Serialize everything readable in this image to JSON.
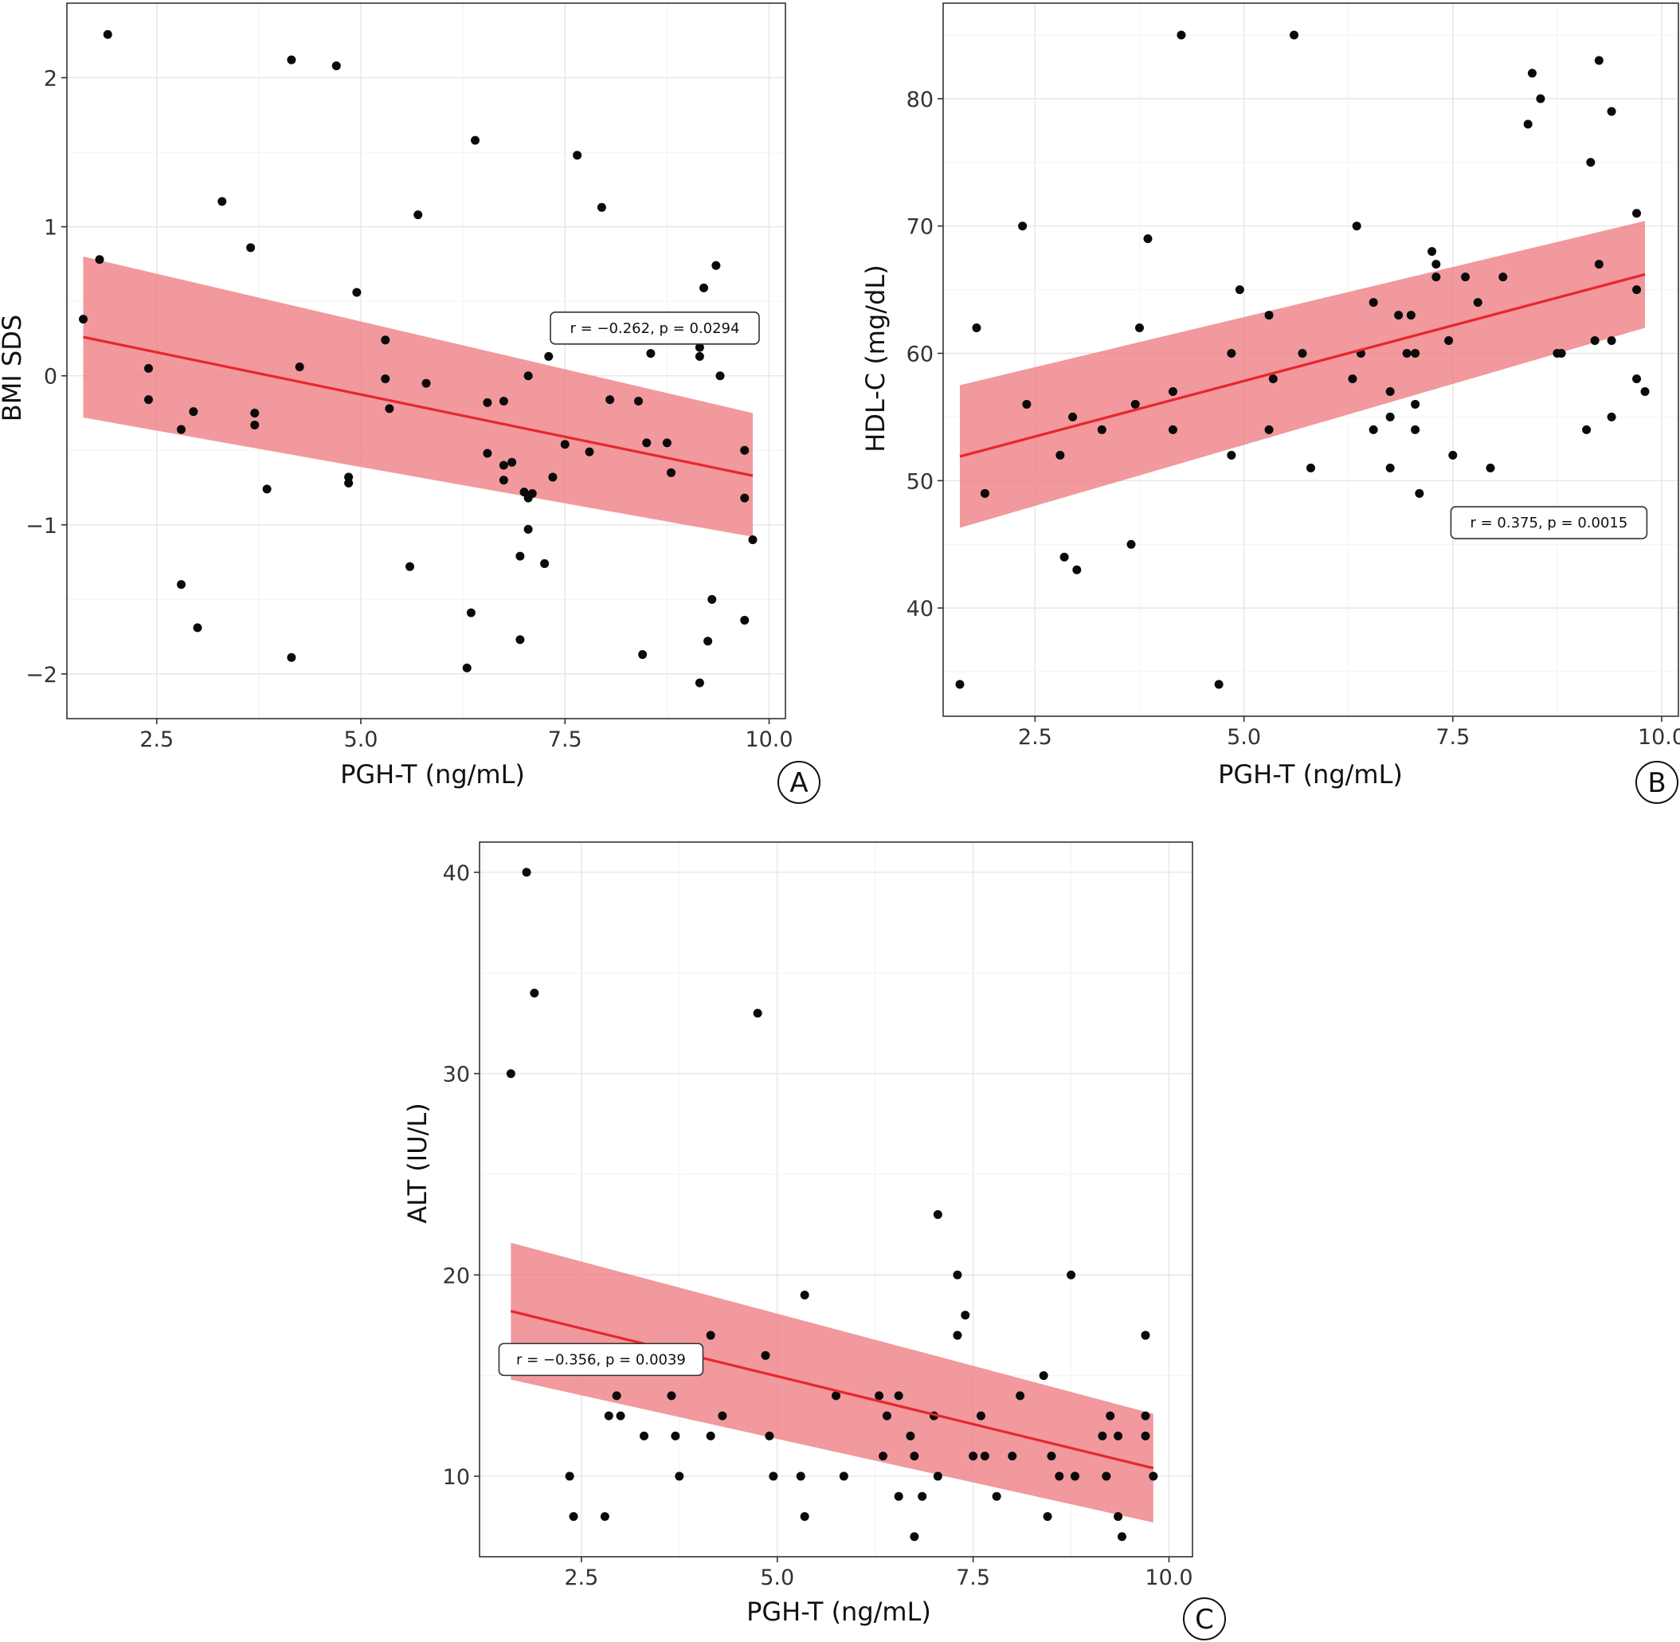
{
  "chart_data": [
    {
      "panel": "A",
      "type": "scatter",
      "xlabel": "PGH-T (ng/mL)",
      "ylabel": "BMI SDS",
      "xlim": [
        1.4,
        10.2
      ],
      "ylim": [
        -2.3,
        2.5
      ],
      "xticks": [
        2.5,
        5.0,
        7.5,
        10.0
      ],
      "xtick_labels": [
        "2.5",
        "5.0",
        "7.5",
        "10.0"
      ],
      "yticks": [
        -2,
        -1,
        0,
        1,
        2
      ],
      "ytick_labels": [
        "−2",
        "−1",
        "0",
        "1",
        "2"
      ],
      "grid": true,
      "annotation": "r = −0.262, p = 0.0294",
      "annotation_pos": [
        8.6,
        0.32
      ],
      "fit": {
        "x": [
          1.6,
          9.8
        ],
        "y": [
          0.26,
          -0.67
        ]
      },
      "band": {
        "x": [
          1.6,
          9.8
        ],
        "upper": [
          0.8,
          -0.25
        ],
        "lower": [
          -0.28,
          -1.08
        ]
      },
      "points": {
        "x": [
          1.6,
          1.8,
          1.9,
          2.4,
          2.4,
          2.8,
          2.8,
          2.95,
          3.0,
          3.3,
          3.65,
          3.7,
          3.7,
          3.85,
          4.15,
          4.15,
          4.25,
          4.7,
          4.85,
          4.85,
          4.95,
          5.3,
          5.3,
          5.35,
          5.6,
          5.7,
          5.8,
          6.3,
          6.35,
          6.4,
          6.55,
          6.55,
          6.75,
          6.75,
          6.75,
          6.85,
          6.95,
          6.95,
          7.0,
          7.05,
          7.05,
          7.05,
          7.1,
          7.25,
          7.3,
          7.35,
          7.5,
          7.65,
          7.8,
          7.95,
          8.05,
          8.4,
          8.45,
          8.5,
          8.55,
          8.75,
          8.8,
          9.15,
          9.15,
          9.15,
          9.2,
          9.25,
          9.3,
          9.35,
          9.4,
          9.7,
          9.7,
          9.7,
          9.8
        ],
        "y": [
          0.38,
          0.78,
          2.29,
          0.05,
          -0.16,
          -0.36,
          -1.4,
          -0.24,
          -1.69,
          1.17,
          0.86,
          -0.25,
          -0.33,
          -0.76,
          2.12,
          -1.89,
          0.06,
          2.08,
          -0.68,
          -0.72,
          0.56,
          0.24,
          -0.02,
          -0.22,
          -1.28,
          1.08,
          -0.05,
          -1.96,
          -1.59,
          1.58,
          -0.18,
          -0.52,
          -0.17,
          -0.6,
          -0.7,
          -0.58,
          -1.21,
          -1.77,
          -0.78,
          -0.82,
          -1.03,
          0.0,
          -0.79,
          -1.26,
          0.13,
          -0.68,
          -0.46,
          1.48,
          -0.51,
          1.13,
          -0.16,
          -0.17,
          -1.87,
          -0.45,
          0.15,
          -0.45,
          -0.65,
          0.13,
          0.19,
          -2.06,
          0.59,
          -1.78,
          -1.5,
          0.74,
          0.0,
          -0.5,
          -0.82,
          -1.64,
          -1.1
        ]
      }
    },
    {
      "panel": "B",
      "type": "scatter",
      "xlabel": "PGH-T (ng/mL)",
      "ylabel": "HDL-C (mg/dL)",
      "xlim": [
        1.4,
        10.2
      ],
      "ylim": [
        31.5,
        87.5
      ],
      "xticks": [
        2.5,
        5.0,
        7.5,
        10.0
      ],
      "xtick_labels": [
        "2.5",
        "5.0",
        "7.5",
        "10.0"
      ],
      "yticks": [
        40,
        50,
        60,
        70,
        80
      ],
      "ytick_labels": [
        "40",
        "50",
        "60",
        "70",
        "80"
      ],
      "grid": true,
      "annotation": "r = 0.375, p = 0.0015",
      "annotation_pos": [
        8.65,
        46.7
      ],
      "fit": {
        "x": [
          1.6,
          9.8
        ],
        "y": [
          51.9,
          66.2
        ]
      },
      "band": {
        "x": [
          1.6,
          9.8
        ],
        "upper": [
          57.5,
          70.4
        ],
        "lower": [
          46.3,
          62.0
        ]
      },
      "points": {
        "x": [
          1.6,
          1.8,
          1.9,
          2.35,
          2.4,
          2.8,
          2.85,
          2.95,
          3.0,
          3.3,
          3.65,
          3.7,
          3.75,
          3.85,
          4.15,
          4.15,
          4.25,
          4.7,
          4.85,
          4.85,
          4.95,
          5.3,
          5.3,
          5.35,
          5.6,
          5.7,
          5.8,
          6.3,
          6.35,
          6.4,
          6.55,
          6.55,
          6.75,
          6.75,
          6.75,
          6.85,
          6.95,
          7.0,
          7.05,
          7.05,
          7.05,
          7.1,
          7.25,
          7.3,
          7.3,
          7.45,
          7.5,
          7.65,
          7.8,
          7.95,
          8.1,
          8.4,
          8.45,
          8.55,
          8.75,
          8.8,
          9.1,
          9.15,
          9.2,
          9.25,
          9.25,
          9.4,
          9.4,
          9.4,
          9.7,
          9.7,
          9.7,
          9.8
        ],
        "y": [
          34,
          62,
          49,
          70,
          56,
          52,
          44,
          55,
          43,
          54,
          45,
          56,
          62,
          69,
          57,
          54,
          85,
          34,
          60,
          52,
          65,
          63,
          54,
          58,
          85,
          60,
          51,
          58,
          70,
          60,
          64,
          54,
          57,
          55,
          51,
          63,
          60,
          63,
          60,
          56,
          54,
          49,
          68,
          67,
          66,
          61,
          52,
          66,
          64,
          51,
          66,
          78,
          82,
          80,
          60,
          60,
          54,
          75,
          61,
          83,
          67,
          79,
          61,
          55,
          58,
          71,
          65,
          57
        ]
      }
    },
    {
      "panel": "C",
      "type": "scatter",
      "xlabel": "PGH-T (ng/mL)",
      "ylabel": "ALT (IU/L)",
      "xlim": [
        1.2,
        10.3
      ],
      "ylim": [
        6.0,
        41.5
      ],
      "xticks": [
        2.5,
        5.0,
        7.5,
        10.0
      ],
      "xtick_labels": [
        "2.5",
        "5.0",
        "7.5",
        "10.0"
      ],
      "yticks": [
        10,
        20,
        30,
        40
      ],
      "ytick_labels": [
        "10",
        "20",
        "30",
        "40"
      ],
      "grid": true,
      "annotation": "r = −0.356, p = 0.0039",
      "annotation_pos": [
        2.75,
        15.8
      ],
      "fit": {
        "x": [
          1.6,
          9.8
        ],
        "y": [
          18.2,
          10.4
        ]
      },
      "band": {
        "x": [
          1.6,
          9.8
        ],
        "upper": [
          21.6,
          13.1
        ],
        "lower": [
          14.8,
          7.7
        ]
      },
      "points": {
        "x": [
          1.6,
          1.8,
          1.9,
          2.35,
          2.4,
          2.8,
          2.85,
          2.95,
          3.0,
          3.3,
          3.65,
          3.7,
          3.75,
          4.15,
          4.15,
          4.3,
          4.75,
          4.85,
          4.9,
          4.95,
          5.3,
          5.35,
          5.35,
          5.75,
          5.85,
          6.3,
          6.35,
          6.4,
          6.55,
          6.55,
          6.7,
          6.75,
          6.75,
          6.85,
          7.0,
          7.05,
          7.05,
          7.3,
          7.3,
          7.4,
          7.5,
          7.6,
          7.65,
          7.8,
          8.0,
          8.1,
          8.4,
          8.45,
          8.5,
          8.6,
          8.75,
          8.8,
          9.15,
          9.2,
          9.25,
          9.35,
          9.35,
          9.4,
          9.7,
          9.7,
          9.7,
          9.8
        ],
        "y": [
          30,
          40,
          34,
          10,
          8,
          8,
          13,
          14,
          13,
          12,
          14,
          12,
          10,
          17,
          12,
          13,
          33,
          16,
          12,
          10,
          10,
          19,
          8,
          14,
          10,
          14,
          11,
          13,
          14,
          9,
          12,
          11,
          7,
          9,
          13,
          23,
          10,
          17,
          20,
          18,
          11,
          13,
          11,
          9,
          11,
          14,
          15,
          8,
          11,
          10,
          20,
          10,
          12,
          10,
          13,
          8,
          12,
          7,
          17,
          12,
          13,
          10
        ]
      }
    }
  ]
}
